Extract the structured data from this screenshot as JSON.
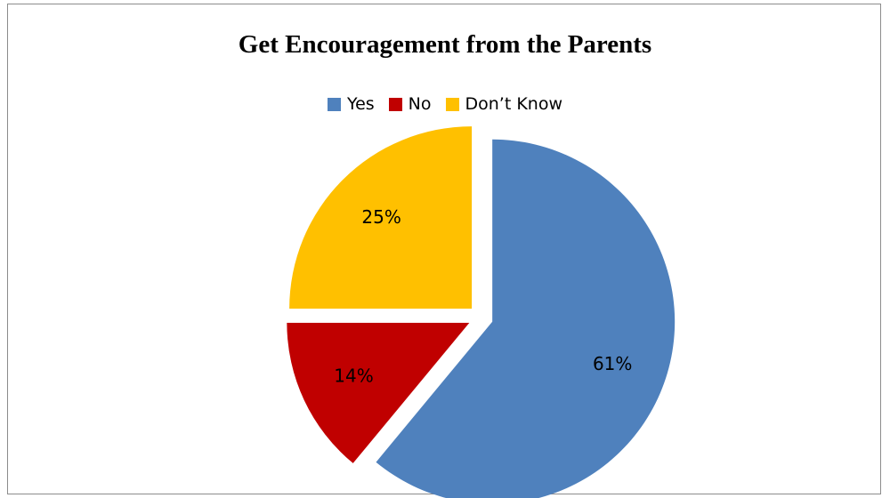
{
  "chart_data": {
    "type": "pie",
    "title": "Get Encouragement from the Parents",
    "legend_position": "top",
    "slices": [
      {
        "label": "Yes",
        "value": 61,
        "display": "61%",
        "color": "#4f81bd"
      },
      {
        "label": "No",
        "value": 14,
        "display": "14%",
        "color": "#c00000"
      },
      {
        "label": "Don’t Know",
        "value": 25,
        "display": "25%",
        "color": "#ffc000"
      }
    ]
  }
}
